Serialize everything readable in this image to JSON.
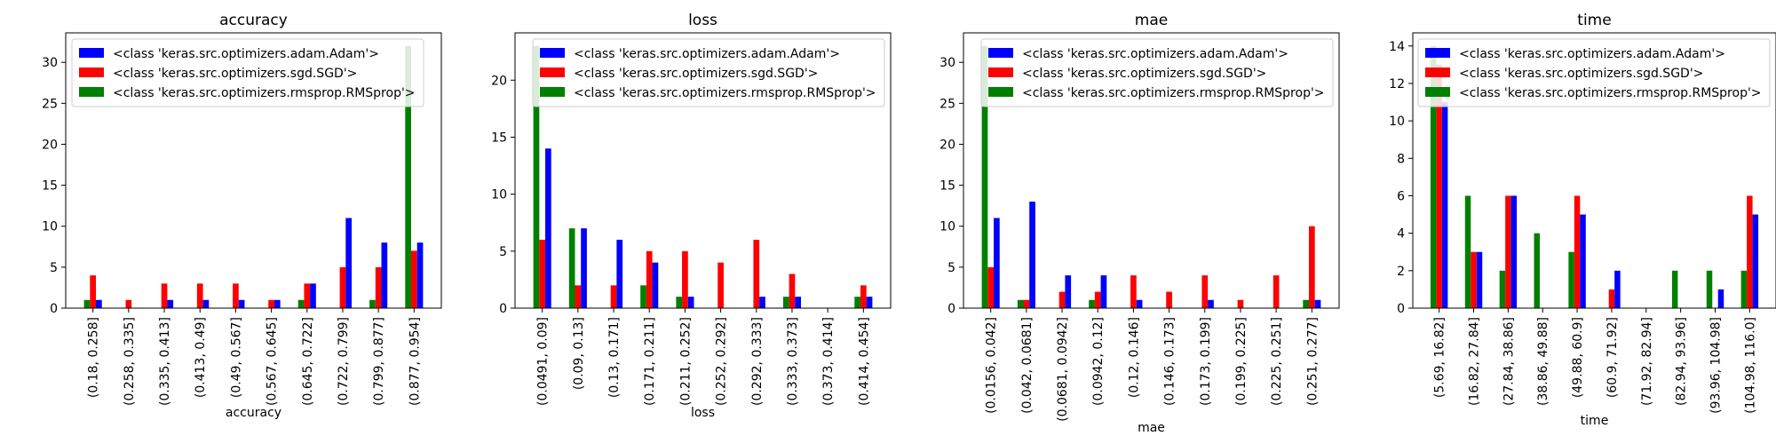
{
  "chart_data": [
    {
      "type": "bar",
      "title": "accuracy",
      "xlabel": "accuracy",
      "ylabel": "",
      "ylim": [
        0,
        33.6
      ],
      "yticks": [
        0,
        5,
        10,
        15,
        20,
        25,
        30
      ],
      "legend_position": "upper-left",
      "categories": [
        "(0.18, 0.258]",
        "(0.258, 0.335]",
        "(0.335, 0.413]",
        "(0.413, 0.49]",
        "(0.49, 0.567]",
        "(0.567, 0.645]",
        "(0.645, 0.722]",
        "(0.722, 0.799]",
        "(0.799, 0.877]",
        "(0.877, 0.954]"
      ],
      "series": [
        {
          "name": "<class 'keras.src.optimizers.adam.Adam'>",
          "color": "#0000ff",
          "values": [
            1,
            0,
            1,
            1,
            1,
            1,
            3,
            11,
            8,
            8
          ]
        },
        {
          "name": "<class 'keras.src.optimizers.sgd.SGD'>",
          "color": "#ff0000",
          "values": [
            4,
            1,
            3,
            3,
            3,
            1,
            3,
            5,
            5,
            7
          ]
        },
        {
          "name": "<class 'keras.src.optimizers.rmsprop.RMSprop'>",
          "color": "#008000",
          "values": [
            1,
            0,
            0,
            0,
            0,
            0,
            1,
            0,
            1,
            32
          ]
        }
      ]
    },
    {
      "type": "bar",
      "title": "loss",
      "xlabel": "loss",
      "ylabel": "",
      "ylim": [
        0,
        24.15
      ],
      "yticks": [
        0,
        5,
        10,
        15,
        20
      ],
      "legend_position": "upper-right",
      "categories": [
        "(0.0491, 0.09]",
        "(0.09, 0.13]",
        "(0.13, 0.171]",
        "(0.171, 0.211]",
        "(0.211, 0.252]",
        "(0.252, 0.292]",
        "(0.292, 0.333]",
        "(0.333, 0.373]",
        "(0.373, 0.414]",
        "(0.414, 0.454]"
      ],
      "series": [
        {
          "name": "<class 'keras.src.optimizers.adam.Adam'>",
          "color": "#0000ff",
          "values": [
            14,
            7,
            6,
            4,
            1,
            0,
            1,
            1,
            0,
            1
          ]
        },
        {
          "name": "<class 'keras.src.optimizers.sgd.SGD'>",
          "color": "#ff0000",
          "values": [
            6,
            2,
            2,
            5,
            5,
            4,
            6,
            3,
            0,
            2
          ]
        },
        {
          "name": "<class 'keras.src.optimizers.rmsprop.RMSprop'>",
          "color": "#008000",
          "values": [
            23,
            7,
            0,
            2,
            1,
            0,
            0,
            1,
            0,
            1
          ]
        }
      ]
    },
    {
      "type": "bar",
      "title": "mae",
      "xlabel": "mae",
      "ylabel": "",
      "ylim": [
        0,
        33.6
      ],
      "yticks": [
        0,
        5,
        10,
        15,
        20,
        25,
        30
      ],
      "legend_position": "upper-right",
      "categories": [
        "(0.0156, 0.042]",
        "(0.042, 0.0681]",
        "(0.0681, 0.0942]",
        "(0.0942, 0.12]",
        "(0.12, 0.146]",
        "(0.146, 0.173]",
        "(0.173, 0.199]",
        "(0.199, 0.225]",
        "(0.225, 0.251]",
        "(0.251, 0.277]"
      ],
      "series": [
        {
          "name": "<class 'keras.src.optimizers.adam.Adam'>",
          "color": "#0000ff",
          "values": [
            11,
            13,
            4,
            4,
            1,
            0,
            1,
            0,
            0,
            1
          ]
        },
        {
          "name": "<class 'keras.src.optimizers.sgd.SGD'>",
          "color": "#ff0000",
          "values": [
            5,
            1,
            2,
            2,
            4,
            2,
            4,
            1,
            4,
            10
          ]
        },
        {
          "name": "<class 'keras.src.optimizers.rmsprop.RMSprop'>",
          "color": "#008000",
          "values": [
            32,
            1,
            0,
            1,
            0,
            0,
            0,
            0,
            0,
            1
          ]
        }
      ]
    },
    {
      "type": "bar",
      "title": "time",
      "xlabel": "time",
      "ylabel": "",
      "ylim": [
        0,
        14.7
      ],
      "yticks": [
        0,
        2,
        4,
        6,
        8,
        10,
        12,
        14
      ],
      "legend_position": "upper-right",
      "categories": [
        "(5.69, 16.82]",
        "(16.82, 27.84]",
        "(27.84, 38.86]",
        "(38.86, 49.88]",
        "(49.88, 60.9]",
        "(60.9, 71.92]",
        "(71.92, 82.94]",
        "(82.94, 93.96]",
        "(93.96, 104.98]",
        "(104.98, 116.0]"
      ],
      "series": [
        {
          "name": "<class 'keras.src.optimizers.adam.Adam'>",
          "color": "#0000ff",
          "values": [
            11,
            3,
            6,
            0,
            5,
            2,
            0,
            0,
            1,
            5
          ]
        },
        {
          "name": "<class 'keras.src.optimizers.sgd.SGD'>",
          "color": "#ff0000",
          "values": [
            13,
            3,
            6,
            0,
            6,
            1,
            0,
            0,
            0,
            6
          ]
        },
        {
          "name": "<class 'keras.src.optimizers.rmsprop.RMSprop'>",
          "color": "#008000",
          "values": [
            14,
            6,
            2,
            4,
            3,
            0,
            0,
            2,
            2,
            2
          ]
        }
      ]
    }
  ]
}
